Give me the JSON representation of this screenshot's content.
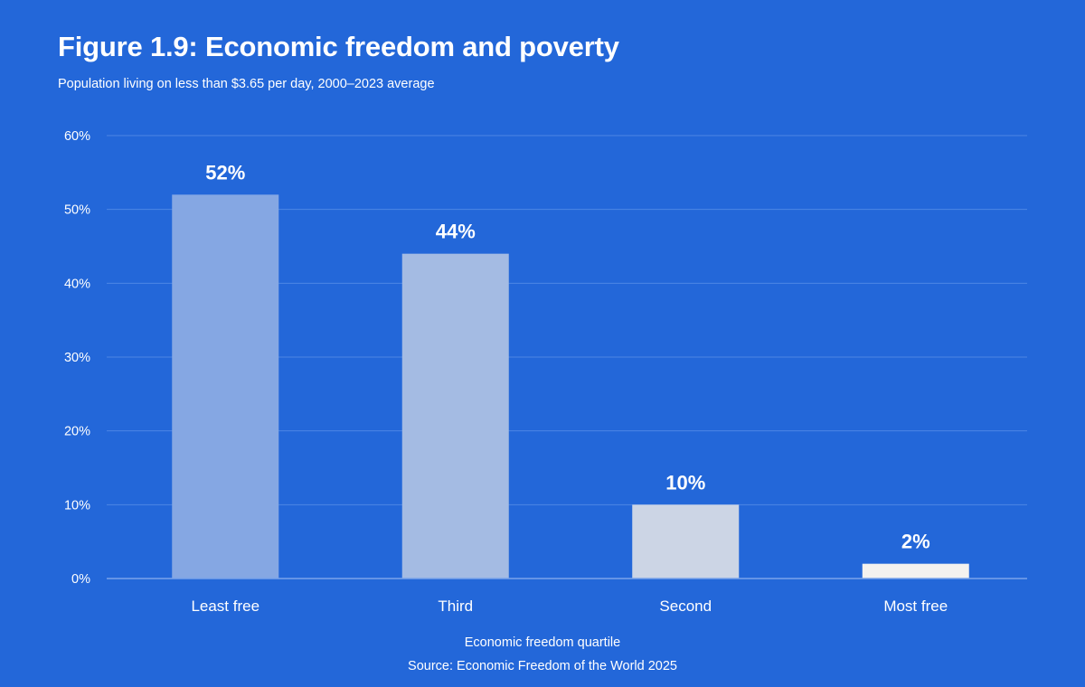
{
  "chart_data": {
    "type": "bar",
    "title": "Figure 1.9: Economic freedom and poverty",
    "subtitle": "Population living on less than $3.65 per day, 2000–2023 average",
    "xlabel": "Economic freedom quartile",
    "source": "Source: Economic Freedom of the World 2025",
    "categories": [
      "Least free",
      "Third",
      "Second",
      "Most free"
    ],
    "values": [
      52,
      44,
      10,
      2
    ],
    "value_labels": [
      "52%",
      "44%",
      "10%",
      "2%"
    ],
    "bar_colors": [
      "#85a7e3",
      "#a4bbe3",
      "#ccd5e5",
      "#f4f2ef"
    ],
    "ylim": [
      0,
      60
    ],
    "yticks": [
      0,
      10,
      20,
      30,
      40,
      50,
      60
    ],
    "ytick_labels": [
      "0%",
      "10%",
      "20%",
      "30%",
      "40%",
      "50%",
      "60%"
    ],
    "grid": true,
    "legend": "none",
    "colors": {
      "background": "#2367d9",
      "text": "#ffffff",
      "grid": "#4d86e4",
      "baseline": "#7aa3ea"
    }
  }
}
